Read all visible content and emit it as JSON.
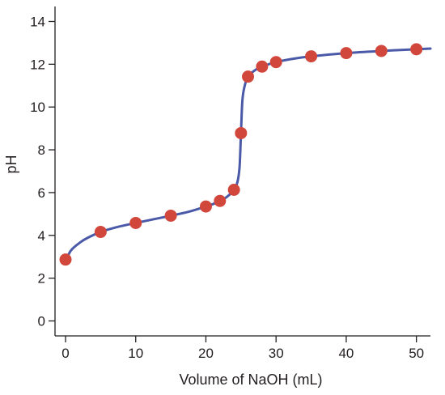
{
  "chart_data": {
    "type": "scatter",
    "title": "",
    "xlabel": "Volume of NaOH (mL)",
    "ylabel": "pH",
    "xlim": [
      -1.5,
      52
    ],
    "ylim": [
      -0.7,
      14.7
    ],
    "x_ticks": [
      0,
      10,
      20,
      30,
      40,
      50
    ],
    "y_ticks": [
      0,
      2,
      4,
      6,
      8,
      10,
      12,
      14
    ],
    "grid": false,
    "legend": "none",
    "series": [
      {
        "kind": "points",
        "color": "#d2473c",
        "points": [
          {
            "x": 0,
            "y": 2.87
          },
          {
            "x": 5,
            "y": 4.16
          },
          {
            "x": 10,
            "y": 4.58
          },
          {
            "x": 15,
            "y": 4.92
          },
          {
            "x": 20,
            "y": 5.35
          },
          {
            "x": 22,
            "y": 5.61
          },
          {
            "x": 24,
            "y": 6.13
          },
          {
            "x": 25,
            "y": 8.78
          },
          {
            "x": 26,
            "y": 11.42
          },
          {
            "x": 28,
            "y": 11.89
          },
          {
            "x": 30,
            "y": 12.1
          },
          {
            "x": 35,
            "y": 12.37
          },
          {
            "x": 40,
            "y": 12.52
          },
          {
            "x": 45,
            "y": 12.62
          },
          {
            "x": 50,
            "y": 12.7
          }
        ]
      },
      {
        "kind": "curve",
        "color": "#4a5aa8",
        "points": [
          {
            "x": 0,
            "y": 2.65
          },
          {
            "x": 0.5,
            "y": 3.15
          },
          {
            "x": 1,
            "y": 3.38
          },
          {
            "x": 2,
            "y": 3.65
          },
          {
            "x": 3,
            "y": 3.86
          },
          {
            "x": 5,
            "y": 4.16
          },
          {
            "x": 7.5,
            "y": 4.4
          },
          {
            "x": 10,
            "y": 4.58
          },
          {
            "x": 12.5,
            "y": 4.75
          },
          {
            "x": 15,
            "y": 4.92
          },
          {
            "x": 17.5,
            "y": 5.1
          },
          {
            "x": 20,
            "y": 5.35
          },
          {
            "x": 21,
            "y": 5.46
          },
          {
            "x": 22,
            "y": 5.61
          },
          {
            "x": 23,
            "y": 5.8
          },
          {
            "x": 24,
            "y": 6.13
          },
          {
            "x": 24.5,
            "y": 6.5
          },
          {
            "x": 24.8,
            "y": 7.2
          },
          {
            "x": 25,
            "y": 8.78
          },
          {
            "x": 25.2,
            "y": 10.3
          },
          {
            "x": 25.5,
            "y": 10.95
          },
          {
            "x": 26,
            "y": 11.42
          },
          {
            "x": 27,
            "y": 11.72
          },
          {
            "x": 28,
            "y": 11.89
          },
          {
            "x": 30,
            "y": 12.1
          },
          {
            "x": 32.5,
            "y": 12.26
          },
          {
            "x": 35,
            "y": 12.37
          },
          {
            "x": 40,
            "y": 12.52
          },
          {
            "x": 45,
            "y": 12.62
          },
          {
            "x": 50,
            "y": 12.7
          },
          {
            "x": 52,
            "y": 12.73
          }
        ]
      }
    ]
  }
}
